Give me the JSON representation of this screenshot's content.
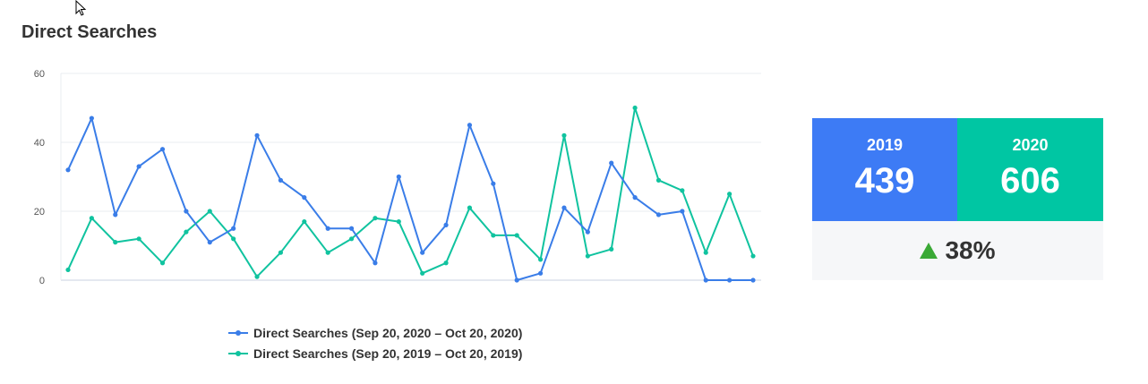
{
  "title": "Direct Searches",
  "colors": {
    "series2020": "#3a7de8",
    "series2019": "#10c39f",
    "box2019": "#3d7bf5",
    "box2020": "#00c6a3",
    "upArrow": "#3aa936"
  },
  "chart_data": {
    "type": "line",
    "title": "Direct Searches",
    "xlabel": "",
    "ylabel": "",
    "ylim": [
      0,
      60
    ],
    "yticks": [
      "0",
      "20",
      "40",
      "60"
    ],
    "grid": true,
    "legend": "bottom",
    "x": [
      1,
      2,
      3,
      4,
      5,
      6,
      7,
      8,
      9,
      10,
      11,
      12,
      13,
      14,
      15,
      16,
      17,
      18,
      19,
      20,
      21,
      22,
      23,
      24,
      25,
      26,
      27,
      28,
      29,
      30
    ],
    "series": [
      {
        "name": "Direct Searches (Sep 20, 2020 – Oct 20, 2020)",
        "color": "#3a7de8",
        "values": [
          32,
          47,
          19,
          33,
          38,
          20,
          11,
          15,
          42,
          29,
          24,
          15,
          15,
          5,
          30,
          8,
          16,
          45,
          28,
          0,
          2,
          21,
          14,
          34,
          24,
          19,
          20,
          0,
          0,
          0
        ]
      },
      {
        "name": "Direct Searches (Sep 20, 2019 – Oct 20, 2019)",
        "color": "#10c39f",
        "values": [
          3,
          18,
          11,
          12,
          5,
          14,
          20,
          12,
          1,
          8,
          17,
          8,
          12,
          18,
          17,
          2,
          5,
          21,
          13,
          13,
          6,
          42,
          7,
          9,
          50,
          29,
          26,
          8,
          25,
          7
        ]
      }
    ]
  },
  "stats": {
    "y2019": {
      "year": "2019",
      "value": "439"
    },
    "y2020": {
      "year": "2020",
      "value": "606"
    },
    "change": "38%"
  }
}
